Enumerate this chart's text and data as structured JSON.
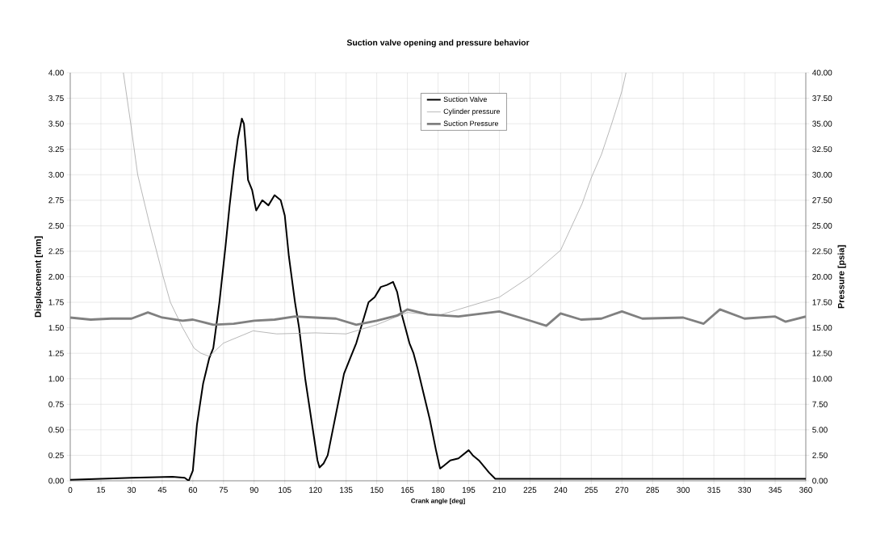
{
  "chart_data": {
    "type": "line",
    "title": "Suction valve opening and pressure behavior",
    "xlabel": "Crank angle [deg]",
    "ylabel": "Displacement [mm]",
    "y2label": "Pressure [psia]",
    "series": [
      {
        "name": "Suction Valve",
        "color": "#000000",
        "axis": "y",
        "x": [
          0,
          15,
          30,
          50,
          56,
          58,
          60,
          62,
          65,
          68,
          70,
          73,
          76,
          78,
          80,
          82,
          84,
          85,
          86,
          87,
          89,
          91,
          94,
          97,
          100,
          103,
          105,
          107,
          110,
          112,
          115,
          118,
          121,
          122,
          124,
          126,
          128,
          131,
          134,
          137,
          140,
          143,
          146,
          149,
          152,
          155,
          158,
          160,
          162,
          164,
          166,
          168,
          170,
          173,
          176,
          179,
          181,
          183,
          186,
          190,
          195,
          197,
          200,
          205,
          208,
          210,
          360
        ],
        "values": [
          0.01,
          0.02,
          0.03,
          0.04,
          0.03,
          0.0,
          0.1,
          0.55,
          0.95,
          1.2,
          1.3,
          1.75,
          2.3,
          2.7,
          3.05,
          3.35,
          3.55,
          3.5,
          3.25,
          2.95,
          2.85,
          2.65,
          2.75,
          2.7,
          2.8,
          2.75,
          2.6,
          2.2,
          1.75,
          1.5,
          1.0,
          0.6,
          0.2,
          0.13,
          0.17,
          0.25,
          0.45,
          0.75,
          1.05,
          1.2,
          1.35,
          1.55,
          1.75,
          1.8,
          1.9,
          1.92,
          1.95,
          1.85,
          1.65,
          1.5,
          1.35,
          1.25,
          1.1,
          0.85,
          0.6,
          0.3,
          0.12,
          0.15,
          0.2,
          0.22,
          0.3,
          0.25,
          0.2,
          0.08,
          0.02,
          0.02,
          0.02
        ]
      },
      {
        "name": "Cylinder pressure",
        "color": "#a6a6a6",
        "axis": "y2",
        "x": [
          26,
          29.6,
          33,
          39,
          45.5,
          49,
          55,
          60.6,
          64,
          68,
          75,
          89.5,
          101,
          120,
          135,
          150,
          165,
          180,
          195,
          210,
          225,
          240,
          250.6,
          255,
          260,
          265,
          270,
          272
        ],
        "values": [
          40,
          35,
          30,
          25,
          20,
          17.5,
          15,
          13,
          12.5,
          12.2,
          13.5,
          14.7,
          14.4,
          14.5,
          14.4,
          15.3,
          16.5,
          16.2,
          17.1,
          18,
          20,
          22.6,
          27.2,
          29.7,
          32,
          35,
          38.2,
          40
        ]
      },
      {
        "name": "Suction Pressure",
        "color": "#808080",
        "axis": "y2",
        "x": [
          0,
          10,
          20,
          30,
          38,
          45,
          55,
          60,
          70,
          80,
          90,
          100,
          110,
          120,
          130,
          140,
          150,
          160,
          165,
          175,
          190,
          210,
          225,
          233,
          240,
          250,
          260,
          270,
          280,
          300,
          310,
          318,
          330,
          345,
          350,
          360
        ],
        "values": [
          16,
          15.8,
          15.9,
          15.9,
          16.5,
          16,
          15.7,
          15.8,
          15.3,
          15.4,
          15.7,
          15.8,
          16.1,
          16.0,
          15.9,
          15.3,
          15.7,
          16.2,
          16.8,
          16.3,
          16.1,
          16.6,
          15.7,
          15.2,
          16.4,
          15.8,
          15.9,
          16.6,
          15.9,
          16.0,
          15.4,
          16.8,
          15.9,
          16.1,
          15.6,
          16.1
        ]
      }
    ],
    "xlim": [
      0,
      360
    ],
    "xticks": [
      0,
      15,
      30,
      45,
      60,
      75,
      90,
      105,
      120,
      135,
      150,
      165,
      180,
      195,
      210,
      225,
      240,
      255,
      270,
      285,
      300,
      315,
      330,
      345,
      360
    ],
    "ylim": [
      0,
      4
    ],
    "yticks": [
      {
        "value": 0,
        "label": "0.00"
      },
      {
        "value": 0.25,
        "label": "0.25"
      },
      {
        "value": 0.5,
        "label": "0.50"
      },
      {
        "value": 0.75,
        "label": "0.75"
      },
      {
        "value": 1,
        "label": "1.00"
      },
      {
        "value": 1.25,
        "label": "1.25"
      },
      {
        "value": 1.5,
        "label": "1.50"
      },
      {
        "value": 1.75,
        "label": "1.75"
      },
      {
        "value": 2,
        "label": "2.00"
      },
      {
        "value": 2.25,
        "label": "2.25"
      },
      {
        "value": 2.5,
        "label": "2.50"
      },
      {
        "value": 2.75,
        "label": "2.75"
      },
      {
        "value": 3,
        "label": "3.00"
      },
      {
        "value": 3.25,
        "label": "3.25"
      },
      {
        "value": 3.5,
        "label": "3.50"
      },
      {
        "value": 3.75,
        "label": "3.75"
      },
      {
        "value": 4,
        "label": "4.00"
      }
    ],
    "y2lim": [
      0,
      40
    ],
    "y2ticks": [
      {
        "value": 0,
        "label": "0.00"
      },
      {
        "value": 2.5,
        "label": "2.50"
      },
      {
        "value": 5,
        "label": "5.00"
      },
      {
        "value": 7.5,
        "label": "7.50"
      },
      {
        "value": 10,
        "label": "10.00"
      },
      {
        "value": 12.5,
        "label": "12.50"
      },
      {
        "value": 15,
        "label": "15.00"
      },
      {
        "value": 17.5,
        "label": "17.50"
      },
      {
        "value": 20,
        "label": "20.00"
      },
      {
        "value": 22.5,
        "label": "22.50"
      },
      {
        "value": 25,
        "label": "25.00"
      },
      {
        "value": 27.5,
        "label": "27.50"
      },
      {
        "value": 30,
        "label": "30.00"
      },
      {
        "value": 32.5,
        "label": "32.50"
      },
      {
        "value": 35,
        "label": "35.00"
      },
      {
        "value": 37.5,
        "label": "37.50"
      },
      {
        "value": 40,
        "label": "40.00"
      }
    ],
    "grid": true,
    "legend": "top",
    "marker": "none",
    "line_style": "solid"
  }
}
